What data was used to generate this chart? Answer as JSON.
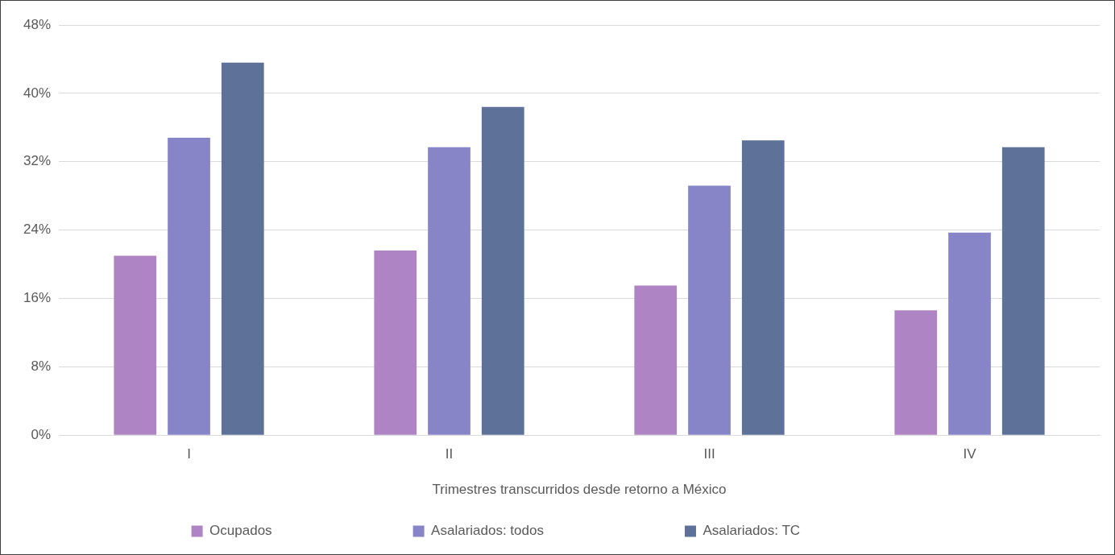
{
  "chart_data": {
    "type": "bar",
    "xlabel": "Trimestres transcurridos desde retorno a México",
    "categories": [
      "I",
      "II",
      "III",
      "IV"
    ],
    "series": [
      {
        "name": "Ocupados",
        "color": "#ae84c4",
        "values": [
          21,
          21.6,
          17.5,
          14.6
        ]
      },
      {
        "name": "Asalariados: todos",
        "color": "#8884c8",
        "values": [
          34.8,
          33.7,
          29.2,
          23.7
        ]
      },
      {
        "name": "Asalariados: TC",
        "color": "#5e7199",
        "values": [
          43.6,
          38.4,
          34.5,
          33.7
        ]
      }
    ],
    "ylim": [
      0,
      48
    ],
    "yticks": [
      {
        "value": 0,
        "label": "0%"
      },
      {
        "value": 8,
        "label": "8%"
      },
      {
        "value": 16,
        "label": "16%"
      },
      {
        "value": 24,
        "label": "24%"
      },
      {
        "value": 32,
        "label": "32%"
      },
      {
        "value": 40,
        "label": "40%"
      },
      {
        "value": 48,
        "label": "48%"
      }
    ],
    "grid": "y",
    "legend": "bottom"
  }
}
